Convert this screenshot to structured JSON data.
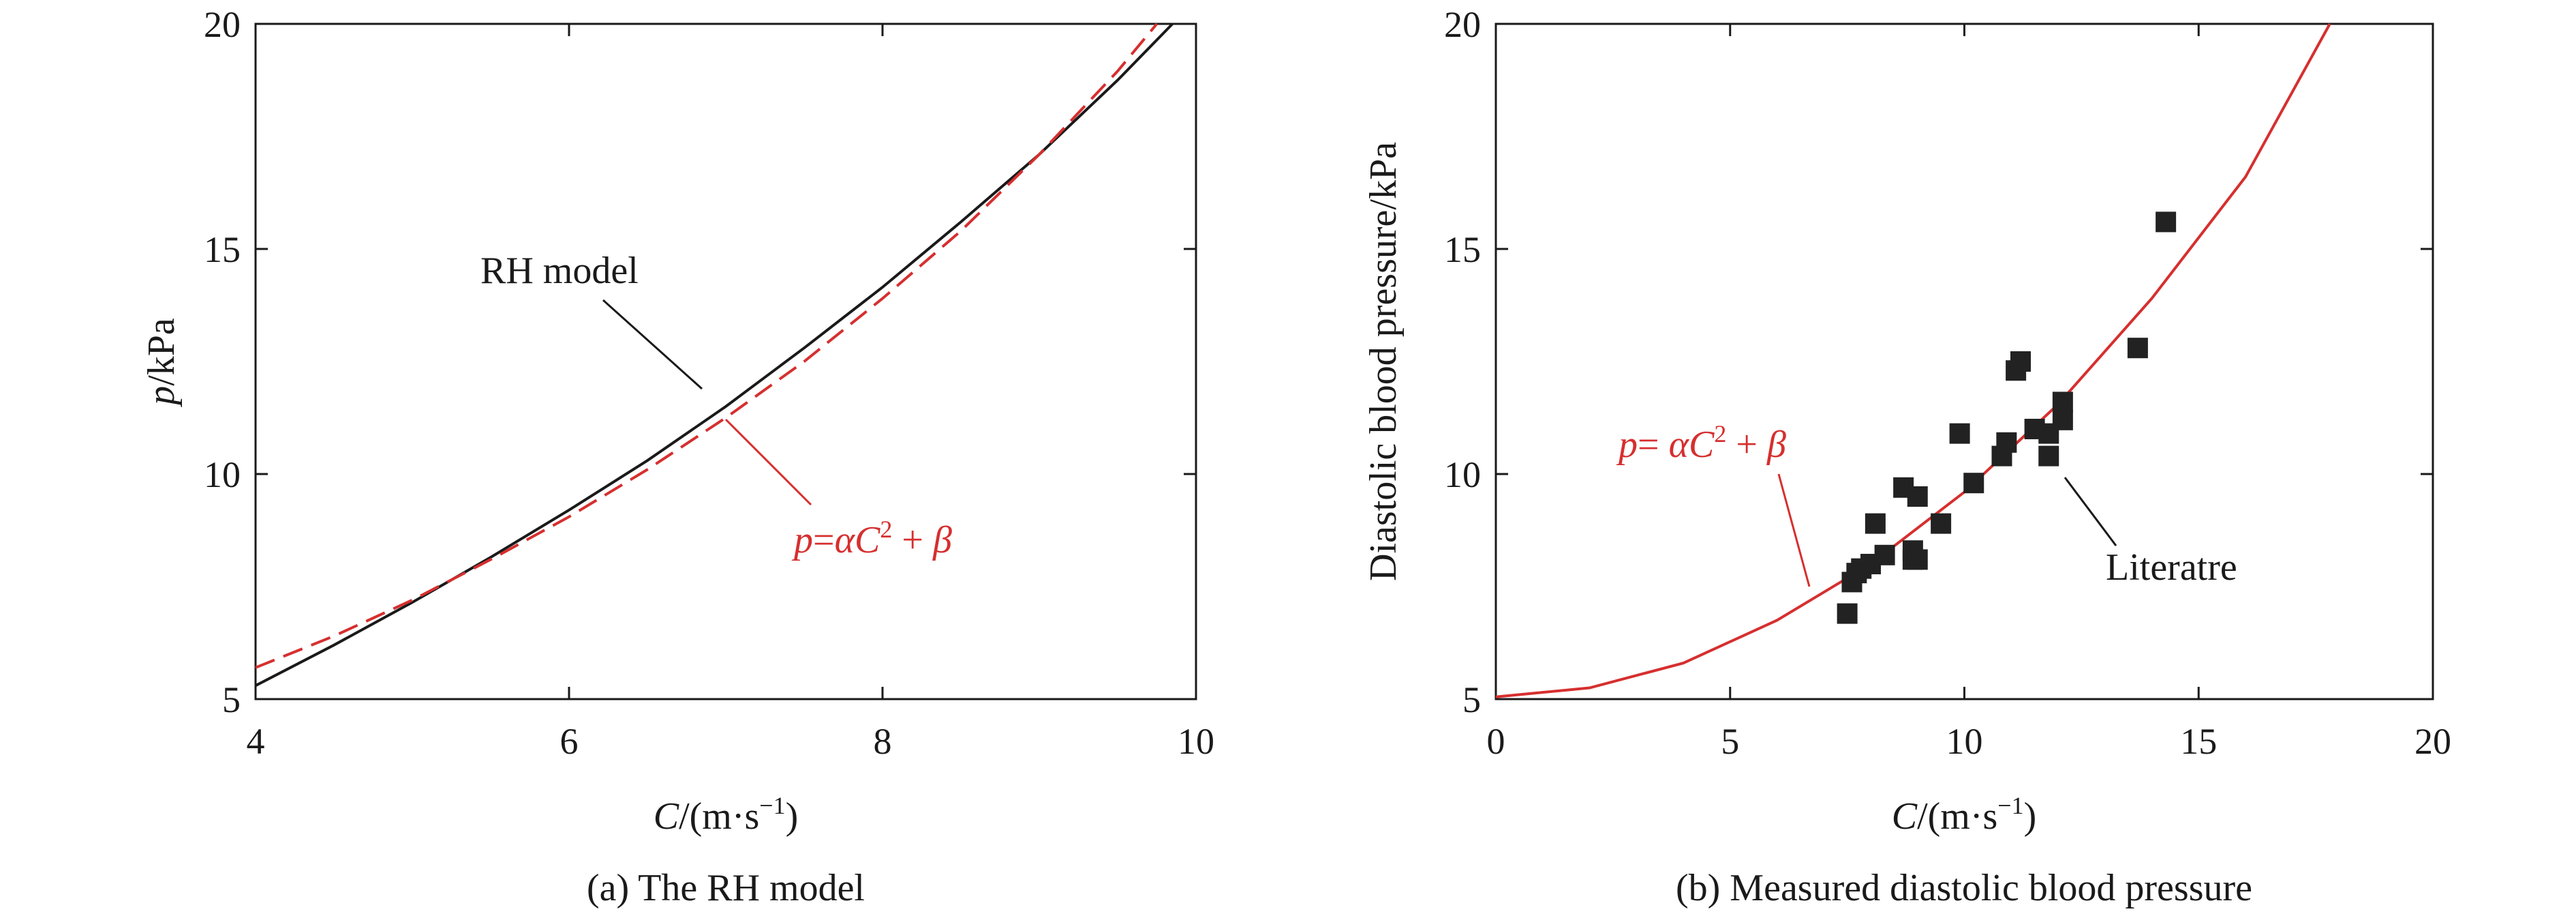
{
  "chart_data": [
    {
      "type": "line",
      "caption": "(a) The RH model",
      "xlabel_italic": "C",
      "xlabel_unit_prefix": "/(m·s",
      "xlabel_unit_sup": "−1",
      "xlabel_unit_suffix": ")",
      "ylabel_italic": "p",
      "ylabel_unit": "/kPa",
      "xlim": [
        4,
        10
      ],
      "ylim": [
        5,
        20
      ],
      "xticks": [
        "4",
        "6",
        "8",
        "10"
      ],
      "yticks": [
        "5",
        "10",
        "15",
        "20"
      ],
      "series": [
        {
          "color": "#1a1a1a",
          "style": "solid",
          "x": [
            4.0,
            4.5,
            5.0,
            5.5,
            6.0,
            6.5,
            7.0,
            7.5,
            8.0,
            8.5,
            9.0,
            9.5,
            9.85
          ],
          "y": [
            5.3,
            6.2,
            7.15,
            8.15,
            9.2,
            10.3,
            11.5,
            12.8,
            14.15,
            15.6,
            17.1,
            18.75,
            20.0
          ]
        },
        {
          "color": "#d62f2f",
          "style": "dashed",
          "x": [
            4.0,
            4.5,
            5.0,
            5.5,
            6.0,
            6.5,
            7.0,
            7.5,
            8.0,
            8.5,
            9.0,
            9.5,
            9.75
          ],
          "y": [
            5.7,
            6.4,
            7.2,
            8.1,
            9.05,
            10.1,
            11.25,
            12.5,
            13.9,
            15.4,
            17.1,
            18.95,
            20.0
          ]
        }
      ],
      "annotations": {
        "rh_model": "RH model",
        "formula_p": "p",
        "formula_mid": "=",
        "formula_alpha": "α",
        "formula_C": "C",
        "formula_sup": "2",
        "formula_tail": " + ",
        "formula_beta": "β"
      }
    },
    {
      "type": "scatter",
      "caption": "(b) Measured diastolic blood pressure",
      "xlabel_italic": "C",
      "xlabel_unit_prefix": "/(m·s",
      "xlabel_unit_sup": "−1",
      "xlabel_unit_suffix": ")",
      "ylabel": "Diastolic blood pressure/kPa",
      "xlim": [
        0,
        20
      ],
      "ylim": [
        5,
        20
      ],
      "xticks": [
        "0",
        "5",
        "10",
        "15",
        "20"
      ],
      "yticks": [
        "5",
        "10",
        "15",
        "20"
      ],
      "fit_curve": {
        "color": "#d62f2f",
        "x": [
          0,
          2,
          4,
          6,
          8,
          10,
          12,
          14,
          16,
          17.8
        ],
        "y": [
          5.05,
          5.25,
          5.8,
          6.75,
          8.0,
          9.6,
          11.55,
          13.9,
          16.6,
          20.0
        ]
      },
      "points": {
        "color": "#222222",
        "x": [
          7.5,
          7.6,
          7.7,
          7.8,
          8.0,
          8.1,
          8.3,
          8.7,
          8.9,
          9.0,
          8.9,
          9.0,
          9.5,
          9.9,
          10.2,
          10.8,
          10.9,
          11.1,
          11.2,
          11.5,
          11.8,
          11.8,
          12.1,
          12.1,
          13.7,
          14.3
        ],
        "y": [
          6.9,
          7.6,
          7.8,
          7.9,
          8.0,
          8.9,
          8.2,
          9.7,
          8.3,
          9.5,
          8.1,
          8.1,
          8.9,
          10.9,
          9.8,
          10.4,
          10.7,
          12.3,
          12.5,
          11.0,
          10.4,
          10.9,
          11.2,
          11.6,
          12.8,
          15.6
        ]
      },
      "annotations": {
        "literature": "Literatre",
        "formula_p": "p",
        "formula_mid": "= ",
        "formula_alpha": "α",
        "formula_C": "C",
        "formula_sup": "2",
        "formula_tail": " + ",
        "formula_beta": "β"
      }
    }
  ]
}
